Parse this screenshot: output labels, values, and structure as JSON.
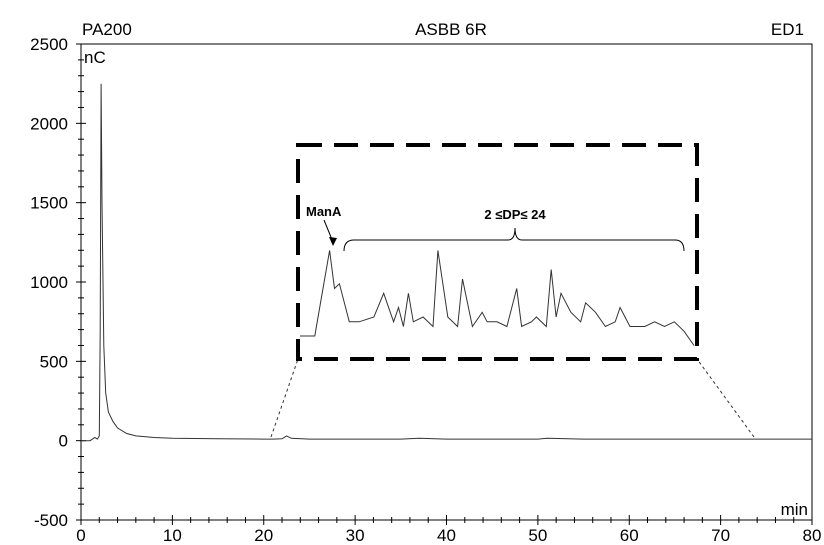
{
  "header": {
    "left": "PA200",
    "center": "ASBB 6R",
    "right": "ED1"
  },
  "chart_data": {
    "type": "line",
    "title": "ASBB 6R",
    "xunit": "min",
    "yunit": "nC",
    "xlim": [
      0,
      80
    ],
    "ylim": [
      -500,
      2500
    ],
    "xticks": [
      0,
      10,
      20,
      30,
      40,
      50,
      60,
      70,
      80
    ],
    "yticks": [
      -500,
      0,
      500,
      1000,
      1500,
      2000,
      2500
    ],
    "grid": false,
    "series": [
      {
        "x": [
          0,
          1,
          1.5,
          1.8,
          2.0,
          2.1,
          2.2,
          2.3,
          2.5,
          2.7,
          3.0,
          3.5,
          4,
          5,
          6,
          8,
          10,
          15,
          20,
          21,
          22,
          22.5,
          23,
          25,
          30,
          35,
          37,
          40,
          45,
          50,
          51,
          55,
          60,
          65,
          70,
          75,
          80
        ],
        "y": [
          0,
          0,
          20,
          10,
          30,
          700,
          2250,
          1500,
          600,
          300,
          180,
          120,
          80,
          45,
          30,
          20,
          15,
          12,
          10,
          10,
          12,
          30,
          15,
          10,
          10,
          10,
          15,
          10,
          10,
          10,
          15,
          10,
          10,
          10,
          10,
          10,
          10
        ]
      }
    ],
    "inset": {
      "annotations": [
        "ManA",
        "2 ≤DP≤ 24"
      ],
      "x": [
        0,
        3,
        4,
        6,
        7,
        8,
        10,
        12,
        15,
        17,
        19,
        20,
        21,
        22,
        23,
        25,
        27,
        28,
        30,
        32,
        33,
        35,
        37,
        38,
        40,
        42,
        44,
        45,
        47,
        48,
        50,
        51,
        52,
        53,
        55,
        57,
        58,
        60,
        62,
        64,
        65,
        66,
        67,
        69,
        70,
        72,
        74,
        76,
        78,
        80
      ],
      "y": [
        0,
        0,
        30,
        90,
        50,
        55,
        15,
        15,
        20,
        45,
        15,
        30,
        10,
        45,
        15,
        20,
        10,
        90,
        20,
        10,
        60,
        10,
        25,
        15,
        15,
        10,
        50,
        10,
        15,
        20,
        10,
        70,
        20,
        45,
        25,
        15,
        35,
        25,
        10,
        15,
        30,
        20,
        10,
        10,
        10,
        15,
        10,
        15,
        5,
        -10
      ]
    }
  }
}
